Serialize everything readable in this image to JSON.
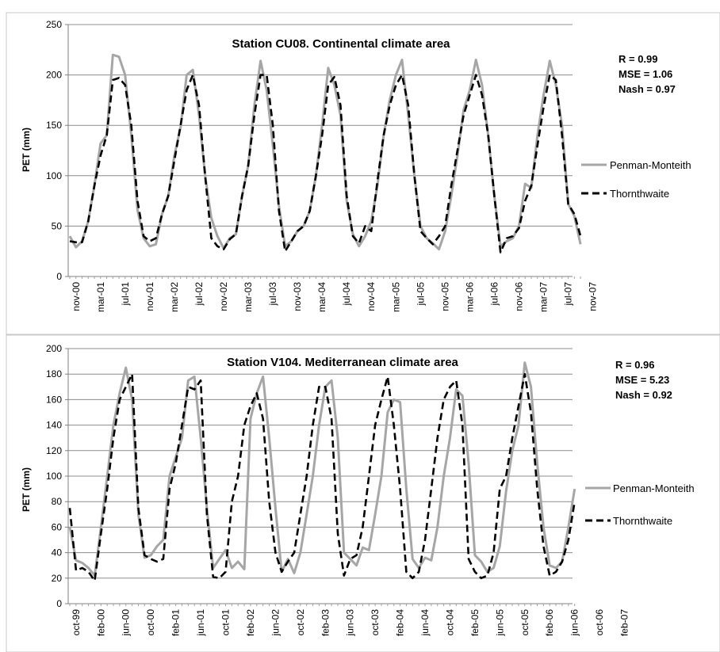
{
  "chart_data": [
    {
      "type": "line",
      "title": "Station CU08. Continental  climate area",
      "ylabel": "PET (mm)",
      "xlabel": "",
      "ylim": [
        0,
        250
      ],
      "yticks": [
        0,
        50,
        100,
        150,
        200,
        250
      ],
      "grid": true,
      "legend_position": "right",
      "stats": [
        "R = 0.99",
        "MSE = 1.06",
        "Nash = 0.97"
      ],
      "x_tick_labels": [
        "nov-00",
        "mar-01",
        "jul-01",
        "nov-01",
        "mar-02",
        "jul-02",
        "nov-02",
        "mar-03",
        "jul-03",
        "nov-03",
        "mar-04",
        "jul-04",
        "nov-04",
        "mar-05",
        "jul-05",
        "nov-05",
        "mar-06",
        "jul-06",
        "nov-06",
        "mar-07",
        "jul-07",
        "nov-07"
      ],
      "x_tick_every": 4,
      "x_start": "2000-10",
      "series": [
        {
          "name": "Penman-Monteith",
          "color": "#a6a6a6",
          "dash": "solid",
          "values": [
            40,
            29,
            35,
            55,
            90,
            132,
            140,
            220,
            218,
            200,
            140,
            66,
            38,
            30,
            32,
            62,
            80,
            120,
            148,
            200,
            205,
            160,
            100,
            58,
            40,
            28,
            38,
            42,
            80,
            110,
            170,
            214,
            185,
            130,
            70,
            30,
            35,
            45,
            50,
            65,
            100,
            150,
            207,
            190,
            160,
            75,
            42,
            30,
            40,
            55,
            90,
            140,
            175,
            200,
            215,
            160,
            100,
            50,
            38,
            33,
            27,
            45,
            80,
            120,
            165,
            185,
            215,
            190,
            140,
            80,
            30,
            35,
            38,
            50,
            92,
            88,
            140,
            180,
            214,
            190,
            150,
            72,
            60,
            32
          ]
        },
        {
          "name": "Thornthwaite",
          "color": "#000000",
          "dash": "dashed",
          "values": [
            35,
            34,
            34,
            55,
            90,
            120,
            140,
            195,
            197,
            190,
            150,
            75,
            40,
            35,
            38,
            62,
            80,
            115,
            150,
            185,
            200,
            170,
            100,
            38,
            30,
            27,
            37,
            42,
            80,
            110,
            160,
            200,
            200,
            150,
            65,
            25,
            35,
            45,
            50,
            65,
            100,
            140,
            190,
            198,
            170,
            80,
            40,
            33,
            50,
            45,
            95,
            140,
            170,
            190,
            200,
            170,
            100,
            45,
            38,
            32,
            40,
            50,
            90,
            125,
            160,
            180,
            200,
            180,
            140,
            80,
            24,
            38,
            40,
            48,
            75,
            90,
            130,
            168,
            200,
            195,
            140,
            72,
            62,
            40
          ]
        }
      ]
    },
    {
      "type": "line",
      "title": "Station V104. Mediterranean climate area",
      "ylabel": "PET (mm)",
      "xlabel": "",
      "ylim": [
        0,
        200
      ],
      "yticks": [
        0,
        20,
        40,
        60,
        80,
        100,
        120,
        140,
        160,
        180,
        200
      ],
      "grid": true,
      "legend_position": "right",
      "stats": [
        "R = 0.96",
        "MSE = 5.23",
        "Nash = 0.92"
      ],
      "x_tick_labels": [
        "oct-99",
        "feb-00",
        "jun-00",
        "oct-00",
        "feb-01",
        "jun-01",
        "oct-01",
        "feb-02",
        "jun-02",
        "oct-02",
        "feb-03",
        "jun-03",
        "oct-03",
        "feb-04",
        "jun-04",
        "oct-04",
        "feb-05",
        "jun-05",
        "oct-05",
        "feb-06",
        "jun-06",
        "oct-06",
        "feb-07"
      ],
      "x_tick_every": 4,
      "x_start": "1999-10",
      "series": [
        {
          "name": "Penman-Monteith",
          "color": "#a6a6a6",
          "dash": "solid",
          "values": [
            60,
            34,
            32,
            28,
            22,
            60,
            100,
            140,
            165,
            185,
            160,
            70,
            36,
            38,
            45,
            50,
            100,
            115,
            130,
            175,
            178,
            130,
            75,
            28,
            35,
            42,
            28,
            33,
            27,
            145,
            165,
            178,
            130,
            75,
            25,
            35,
            24,
            40,
            70,
            100,
            140,
            170,
            175,
            130,
            40,
            35,
            30,
            44,
            42,
            70,
            100,
            150,
            160,
            158,
            90,
            35,
            28,
            36,
            34,
            60,
            100,
            130,
            168,
            163,
            110,
            38,
            33,
            25,
            28,
            45,
            88,
            120,
            140,
            189,
            170,
            110,
            60,
            30,
            28,
            33,
            60,
            90
          ]
        },
        {
          "name": "Thornthwaite",
          "color": "#000000",
          "dash": "dashed",
          "values": [
            75,
            26,
            28,
            25,
            18,
            55,
            90,
            130,
            160,
            170,
            180,
            75,
            38,
            35,
            33,
            35,
            90,
            110,
            140,
            170,
            168,
            175,
            70,
            21,
            20,
            25,
            80,
            100,
            140,
            155,
            165,
            145,
            80,
            40,
            25,
            33,
            40,
            70,
            100,
            140,
            170,
            170,
            145,
            55,
            22,
            35,
            38,
            60,
            100,
            140,
            160,
            178,
            140,
            90,
            25,
            20,
            25,
            50,
            90,
            130,
            160,
            170,
            175,
            140,
            35,
            25,
            20,
            22,
            40,
            90,
            100,
            130,
            155,
            180,
            150,
            90,
            45,
            22,
            25,
            33,
            50,
            80
          ]
        }
      ]
    }
  ]
}
